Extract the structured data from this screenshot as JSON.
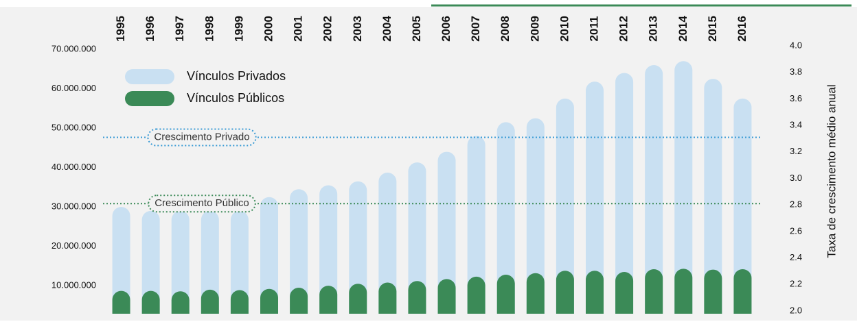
{
  "chart_data": {
    "type": "bar",
    "categories": [
      "1995",
      "1996",
      "1997",
      "1998",
      "1999",
      "2000",
      "2001",
      "2002",
      "2003",
      "2004",
      "2005",
      "2006",
      "2007",
      "2008",
      "2009",
      "2010",
      "2011",
      "2012",
      "2013",
      "2014",
      "2015",
      "2016"
    ],
    "series": [
      {
        "name": "Vínculos Privados",
        "color": "#c9e0f2",
        "values": [
          30000000,
          29000000,
          29000000,
          29000000,
          29000000,
          32500000,
          34500000,
          35500000,
          36500000,
          38700000,
          41300000,
          44000000,
          48000000,
          51500000,
          52500000,
          57500000,
          61800000,
          64000000,
          66000000,
          67000000,
          62500000,
          57500000
        ]
      },
      {
        "name": "Vínculos Públicos",
        "color": "#3b8a57",
        "values": [
          8700000,
          8700000,
          8600000,
          9000000,
          8900000,
          9200000,
          9500000,
          10000000,
          10500000,
          10800000,
          11200000,
          11700000,
          12300000,
          12800000,
          13200000,
          13800000,
          13800000,
          13500000,
          14200000,
          14300000,
          14100000,
          14200000
        ]
      }
    ],
    "ylim": [
      2900000,
      70000000
    ],
    "yticks": [
      {
        "value": 10000000,
        "label": "10.000.000"
      },
      {
        "value": 20000000,
        "label": "20.000.000"
      },
      {
        "value": 30000000,
        "label": "30.000.000"
      },
      {
        "value": 40000000,
        "label": "40.000.000"
      },
      {
        "value": 50000000,
        "label": "50.000.000"
      },
      {
        "value": 60000000,
        "label": "60.000.000"
      },
      {
        "value": 70000000,
        "label": "70.000.000"
      }
    ],
    "y2lim": [
      2.0,
      4.0
    ],
    "y2ticks": [
      {
        "value": 2,
        "label": "2.0"
      },
      2.2,
      2.4,
      2.6,
      2.8,
      {
        "value": 3,
        "label": "3.0"
      },
      3.2,
      3.4,
      3.6,
      3.8,
      {
        "value": 4,
        "label": "4.0"
      }
    ],
    "y2label": "Taxa de crescimento médio anual",
    "reference_lines": [
      {
        "label": "Crescimento Privado",
        "value": 3.31,
        "axis": "y2",
        "color": "#3a9bd5"
      },
      {
        "label": "Crescimento Público",
        "value": 2.81,
        "axis": "y2",
        "color": "#3b8a57"
      }
    ],
    "legend": "top-left",
    "grid": false
  }
}
